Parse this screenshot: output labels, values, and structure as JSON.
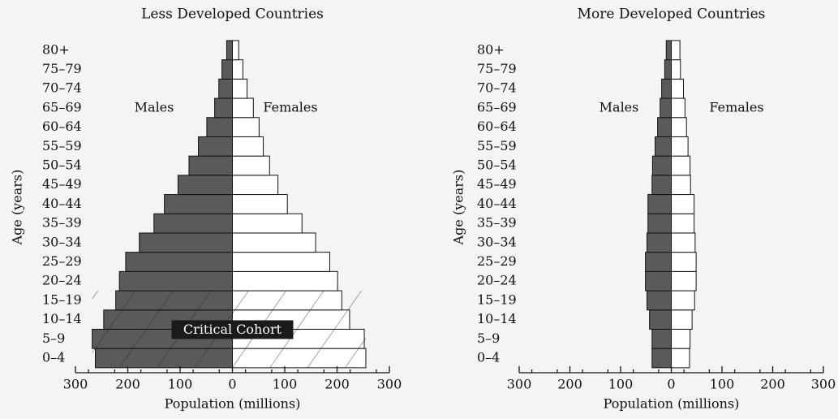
{
  "chart_data": [
    {
      "type": "pyramid",
      "title": "Less Developed Countries",
      "categories": [
        "0–4",
        "5–9",
        "10–14",
        "15–19",
        "20–24",
        "25–29",
        "30–34",
        "35–39",
        "40–44",
        "45–49",
        "50–54",
        "55–59",
        "60–64",
        "65–69",
        "70–74",
        "75–79",
        "80+"
      ],
      "series": [
        {
          "name": "Males",
          "color": "#5a5a5a",
          "values": [
            262,
            268,
            246,
            223,
            216,
            204,
            178,
            150,
            130,
            104,
            83,
            65,
            49,
            34,
            26,
            20,
            11
          ]
        },
        {
          "name": "Females",
          "color": "#ffffff",
          "values": [
            255,
            252,
            224,
            209,
            201,
            186,
            159,
            133,
            105,
            87,
            71,
            59,
            51,
            40,
            28,
            20,
            12
          ]
        }
      ],
      "xlabel": "Population (millions)",
      "ylabel": "Age (years)",
      "annotation": "Critical Cohort",
      "xlim": [
        -300,
        300
      ],
      "xticks": [
        {
          "value": -300,
          "label": "300"
        },
        {
          "value": -200,
          "label": "200"
        },
        {
          "value": -100,
          "label": "100"
        },
        0,
        100,
        200,
        300
      ]
    },
    {
      "type": "pyramid",
      "title": "More Developed Countries",
      "categories": [
        "0–4",
        "5–9",
        "10–14",
        "15–19",
        "20–24",
        "25–29",
        "30–34",
        "35–39",
        "40–44",
        "45–49",
        "50–54",
        "55–59",
        "60–64",
        "65–69",
        "70–74",
        "75–79",
        "80+"
      ],
      "series": [
        {
          "name": "Males",
          "color": "#5a5a5a",
          "values": [
            38,
            38,
            43,
            48,
            51,
            51,
            48,
            46,
            46,
            38,
            37,
            32,
            27,
            22,
            19,
            13,
            10
          ]
        },
        {
          "name": "Females",
          "color": "#ffffff",
          "values": [
            36,
            37,
            41,
            46,
            49,
            49,
            47,
            45,
            45,
            38,
            37,
            33,
            30,
            27,
            24,
            18,
            17
          ]
        }
      ],
      "xlabel": "Population (millions)",
      "ylabel": "Age (years)",
      "xlim": [
        -300,
        300
      ],
      "xticks": [
        {
          "value": -300,
          "label": "300"
        },
        {
          "value": -200,
          "label": "200"
        },
        {
          "value": -100,
          "label": "100"
        },
        0,
        100,
        200,
        300
      ]
    }
  ]
}
